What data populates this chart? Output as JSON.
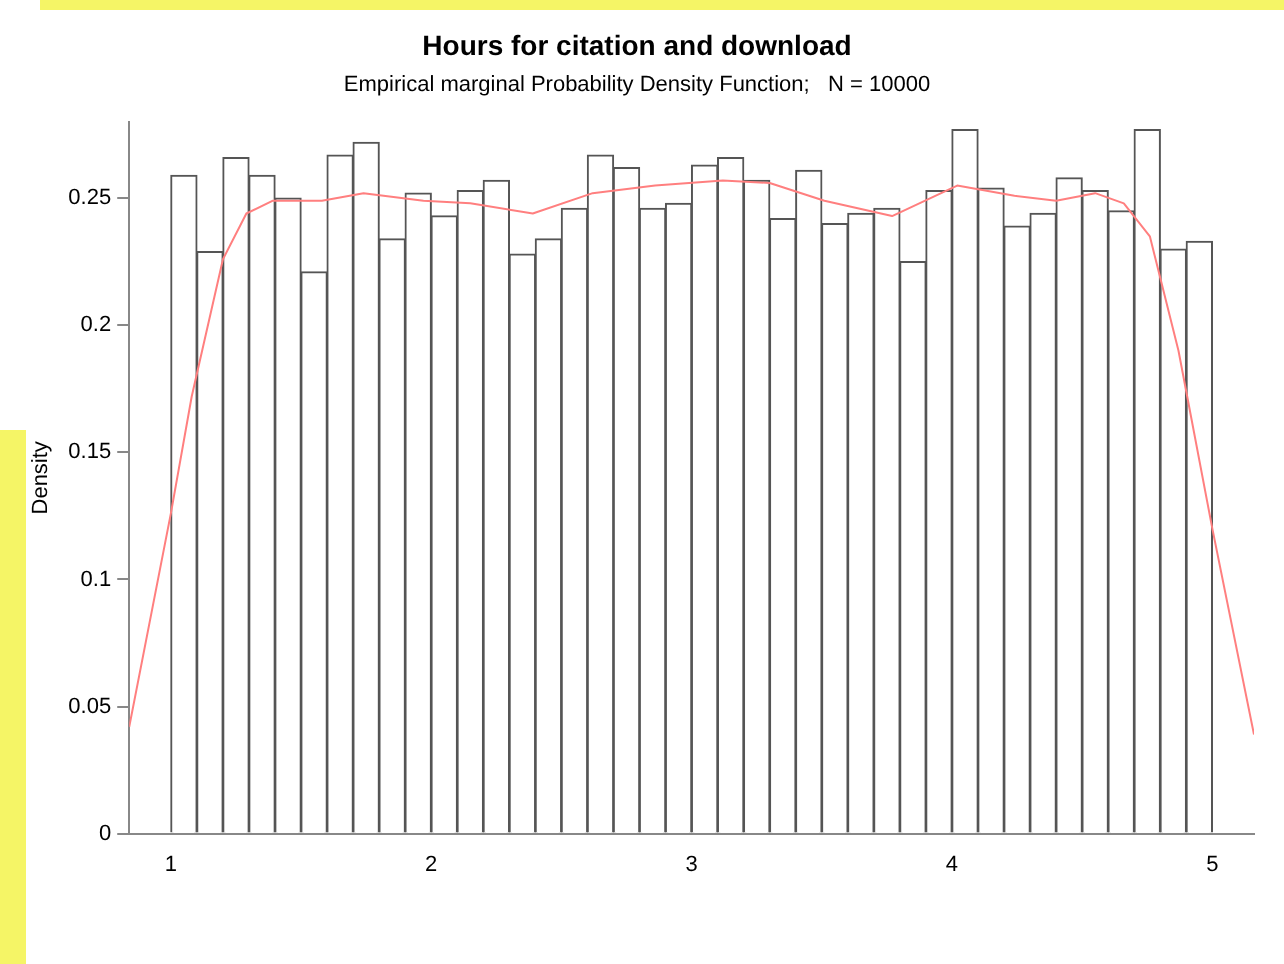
{
  "chart_data": {
    "type": "histogram",
    "title": "Hours for citation and download",
    "subtitle": "Empirical marginal Probability Density Function;   N = 10000",
    "ylabel": "Density",
    "bins": [
      1,
      1.1,
      1.2,
      1.3,
      1.4,
      1.5,
      1.6,
      1.7,
      1.8,
      1.9,
      2,
      2.1,
      2.2,
      2.3,
      2.4,
      2.5,
      2.6,
      2.7,
      2.8,
      2.9,
      3,
      3.1,
      3.2,
      3.3,
      3.4,
      3.5,
      3.6,
      3.7,
      3.8,
      3.9,
      4,
      4.1,
      4.2,
      4.3,
      4.4,
      4.5,
      4.6,
      4.7,
      4.8,
      4.9,
      5
    ],
    "series": [
      {
        "color": "#ffffff",
        "values": [
          0.259,
          0.229,
          0.266,
          0.259,
          0.25,
          0.221,
          0.267,
          0.272,
          0.234,
          0.252,
          0.243,
          0.253,
          0.257,
          0.228,
          0.234,
          0.246,
          0.267,
          0.262,
          0.246,
          0.248,
          0.263,
          0.266,
          0.257,
          0.242,
          0.261,
          0.24,
          0.244,
          0.246,
          0.225,
          0.253,
          0.277,
          0.254,
          0.239,
          0.244,
          0.258,
          0.253,
          0.245,
          0.277,
          0.23,
          0.233
        ]
      },
      {
        "type": "line",
        "color": "#ff7f7f",
        "x": [
          0.84,
          1,
          1.08,
          1.2,
          1.29,
          1.39,
          1.58,
          1.74,
          1.97,
          2.15,
          2.39,
          2.62,
          2.86,
          3.12,
          3.3,
          3.51,
          3.77,
          4.02,
          4.24,
          4.4,
          4.55,
          4.66,
          4.76,
          4.87,
          5,
          5.16
        ],
        "values": [
          0.042,
          0.126,
          0.172,
          0.226,
          0.244,
          0.249,
          0.249,
          0.252,
          0.249,
          0.248,
          0.244,
          0.252,
          0.255,
          0.257,
          0.256,
          0.249,
          0.243,
          0.255,
          0.251,
          0.249,
          0.252,
          0.248,
          0.235,
          0.19,
          0.12,
          0.039
        ]
      }
    ],
    "xlim": [
      0.84,
      5.16
    ],
    "xticks": [
      1,
      2,
      3,
      4,
      5
    ],
    "ylim": [
      0,
      0.28
    ],
    "yticks": [
      0,
      0.05,
      0.1,
      0.15,
      0.2,
      0.25
    ],
    "grid": false,
    "legend": false,
    "marker": "none",
    "line_style": "solid"
  }
}
